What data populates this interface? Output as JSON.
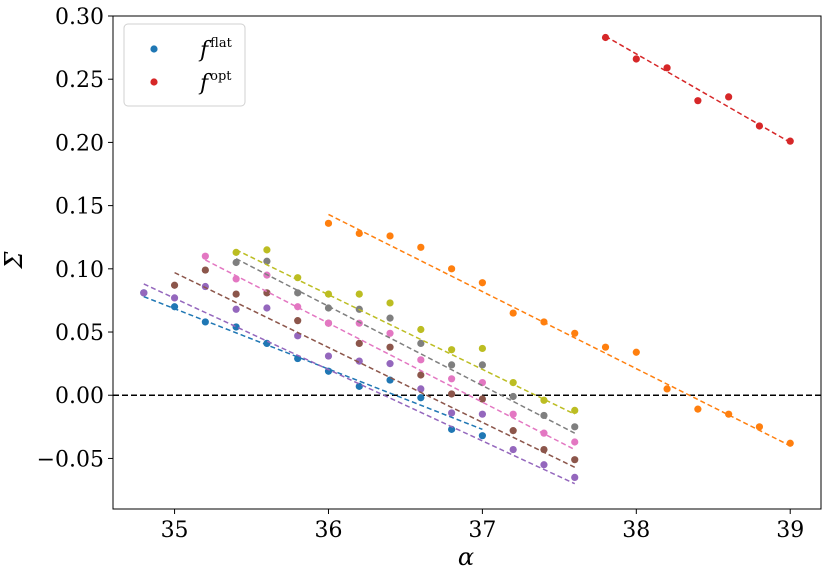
{
  "chart_data": {
    "type": "scatter",
    "xlabel": "α",
    "ylabel": "Σ",
    "xlim": [
      34.6,
      39.2
    ],
    "ylim": [
      -0.09,
      0.3
    ],
    "x_ticks": [
      35,
      36,
      37,
      38,
      39
    ],
    "x_tick_labels": [
      "35",
      "36",
      "37",
      "38",
      "39"
    ],
    "y_ticks": [
      -0.05,
      0.0,
      0.05,
      0.1,
      0.15,
      0.2,
      0.25,
      0.3
    ],
    "y_tick_labels": [
      "−0.05",
      "0.00",
      "0.05",
      "0.10",
      "0.15",
      "0.20",
      "0.25",
      "0.30"
    ],
    "grid": false,
    "legend_position": "top-left",
    "reference_line": {
      "y": 0.0,
      "style": "dashed",
      "color": "#000000"
    },
    "legend": [
      {
        "base": "f",
        "sup": "flat",
        "color": "#1f77b4"
      },
      {
        "base": "f",
        "sup": "opt",
        "color": "#d62728"
      }
    ],
    "series": [
      {
        "color": "#1f77b4",
        "x": [
          34.8,
          35.0,
          35.2,
          35.4,
          35.6,
          35.8,
          36.0,
          36.2,
          36.4,
          36.6,
          36.8,
          37.0
        ],
        "y": [
          0.081,
          0.07,
          0.058,
          0.054,
          0.041,
          0.029,
          0.019,
          0.007,
          0.012,
          -0.002,
          -0.027,
          -0.032
        ],
        "fit": [
          [
            34.8,
            0.078
          ],
          [
            37.0,
            -0.027
          ]
        ]
      },
      {
        "color": "#9467bd",
        "x": [
          34.8,
          35.0,
          35.2,
          35.4,
          35.6,
          35.8,
          36.0,
          36.2,
          36.4,
          36.6,
          36.8,
          37.0,
          37.2,
          37.4,
          37.6
        ],
        "y": [
          0.081,
          0.077,
          0.086,
          0.068,
          0.069,
          0.047,
          0.031,
          0.027,
          0.025,
          0.005,
          -0.014,
          -0.015,
          -0.043,
          -0.055,
          -0.065
        ],
        "fit": [
          [
            34.8,
            0.088
          ],
          [
            37.6,
            -0.07
          ]
        ]
      },
      {
        "color": "#8c564b",
        "x": [
          35.0,
          35.2,
          35.4,
          35.6,
          35.8,
          36.0,
          36.2,
          36.4,
          36.6,
          36.8,
          37.0,
          37.2,
          37.4,
          37.6
        ],
        "y": [
          0.087,
          0.099,
          0.08,
          0.081,
          0.059,
          0.057,
          0.041,
          0.038,
          0.016,
          0.001,
          -0.003,
          -0.028,
          -0.043,
          -0.051
        ],
        "fit": [
          [
            35.0,
            0.097
          ],
          [
            37.6,
            -0.057
          ]
        ]
      },
      {
        "color": "#e377c2",
        "x": [
          35.2,
          35.4,
          35.6,
          35.8,
          36.0,
          36.2,
          36.4,
          36.6,
          36.8,
          37.0,
          37.2,
          37.4,
          37.6
        ],
        "y": [
          0.11,
          0.092,
          0.095,
          0.07,
          0.057,
          0.057,
          0.049,
          0.028,
          0.013,
          0.01,
          -0.015,
          -0.03,
          -0.037
        ],
        "fit": [
          [
            35.2,
            0.107
          ],
          [
            37.6,
            -0.043
          ]
        ]
      },
      {
        "color": "#7f7f7f",
        "x": [
          35.4,
          35.6,
          35.8,
          36.0,
          36.2,
          36.4,
          36.6,
          36.8,
          37.0,
          37.2,
          37.4,
          37.6
        ],
        "y": [
          0.105,
          0.106,
          0.081,
          0.069,
          0.068,
          0.061,
          0.041,
          0.024,
          0.024,
          -0.001,
          -0.016,
          -0.025
        ],
        "fit": [
          [
            35.4,
            0.108
          ],
          [
            37.6,
            -0.03
          ]
        ]
      },
      {
        "color": "#bcbd22",
        "x": [
          35.4,
          35.6,
          35.8,
          36.0,
          36.2,
          36.4,
          36.6,
          36.8,
          37.0,
          37.2,
          37.4,
          37.6
        ],
        "y": [
          0.113,
          0.115,
          0.093,
          0.08,
          0.08,
          0.073,
          0.052,
          0.036,
          0.037,
          0.01,
          -0.004,
          -0.012
        ],
        "fit": [
          [
            35.4,
            0.115
          ],
          [
            37.6,
            -0.015
          ]
        ]
      },
      {
        "color": "#ff7f0e",
        "x": [
          36.0,
          36.2,
          36.4,
          36.6,
          36.8,
          37.0,
          37.2,
          37.4,
          37.6,
          37.8,
          38.0,
          38.2,
          38.4,
          38.6,
          38.8,
          39.0
        ],
        "y": [
          0.136,
          0.128,
          0.126,
          0.117,
          0.1,
          0.089,
          0.065,
          0.058,
          0.049,
          0.038,
          0.034,
          0.005,
          -0.011,
          -0.015,
          -0.025,
          -0.038
        ],
        "fit": [
          [
            36.0,
            0.143
          ],
          [
            39.0,
            -0.04
          ]
        ]
      },
      {
        "color": "#d62728",
        "x": [
          37.8,
          38.0,
          38.2,
          38.4,
          38.6,
          38.8,
          39.0
        ],
        "y": [
          0.283,
          0.266,
          0.259,
          0.233,
          0.236,
          0.213,
          0.201
        ],
        "fit": [
          [
            37.8,
            0.284
          ],
          [
            39.0,
            0.2
          ]
        ]
      }
    ]
  }
}
